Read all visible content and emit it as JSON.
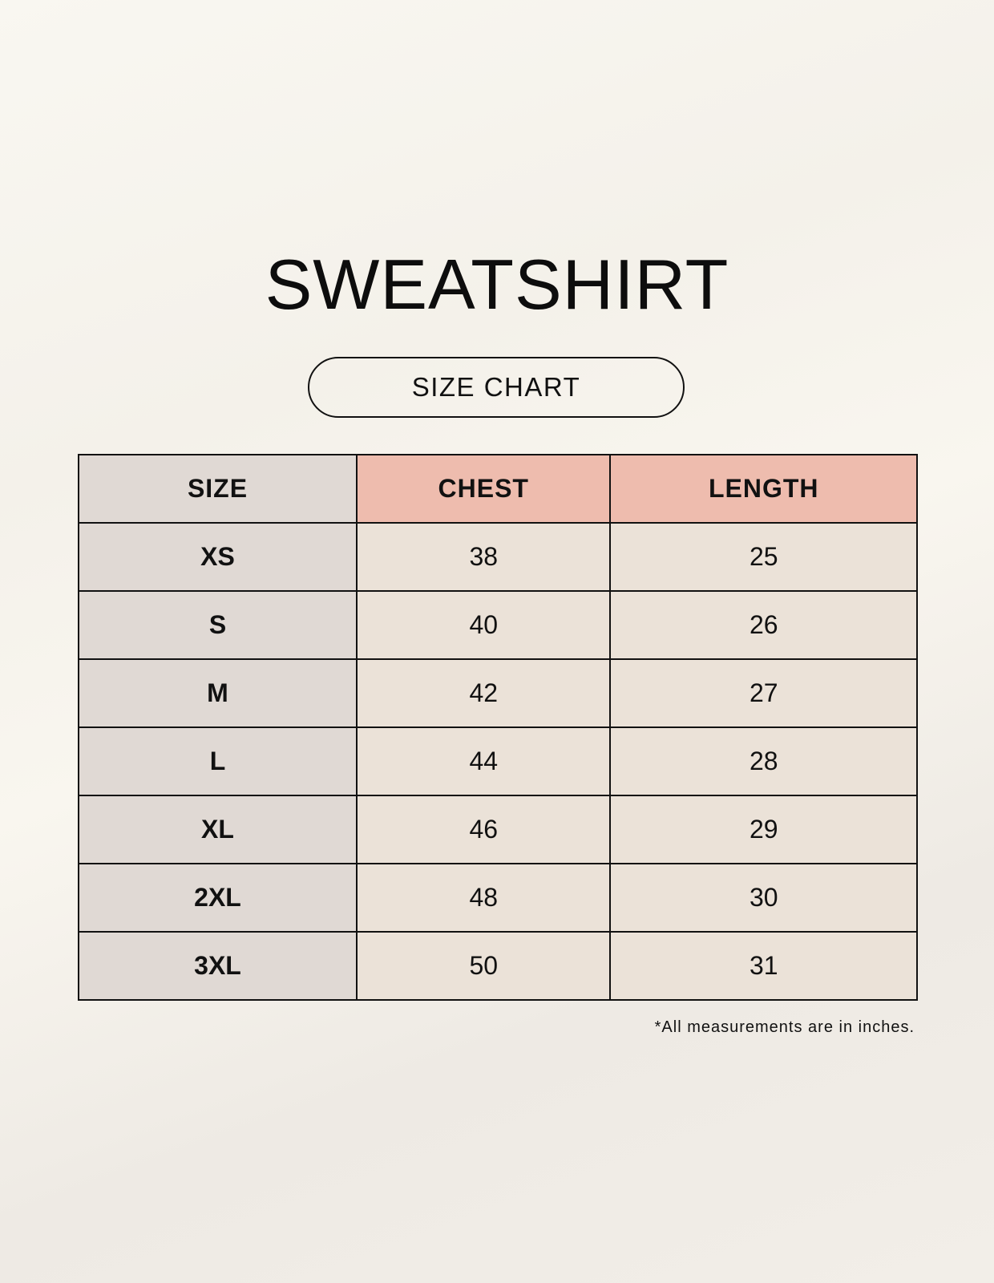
{
  "title": "SWEATSHIRT",
  "subtitle": "SIZE CHART",
  "table": {
    "headers": [
      "SIZE",
      "CHEST",
      "LENGTH"
    ],
    "rows": [
      [
        "XS",
        "38",
        "25"
      ],
      [
        "S",
        "40",
        "26"
      ],
      [
        "M",
        "42",
        "27"
      ],
      [
        "L",
        "44",
        "28"
      ],
      [
        "XL",
        "46",
        "29"
      ],
      [
        "2XL",
        "48",
        "30"
      ],
      [
        "3XL",
        "50",
        "31"
      ]
    ]
  },
  "footnote": "*All measurements are in inches.",
  "colors": {
    "size_column": "#e0d9d4",
    "header_accent": "#eebcae",
    "cell": "#ebe2d8",
    "background": "#f8f6f0"
  }
}
